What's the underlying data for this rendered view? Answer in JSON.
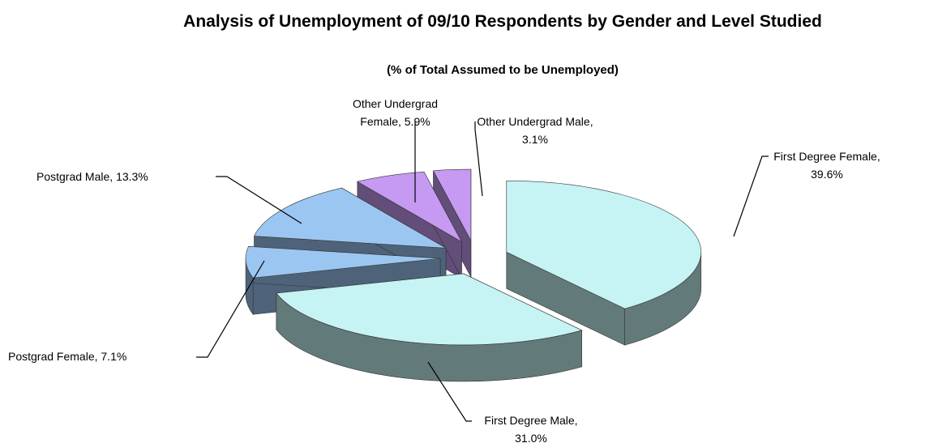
{
  "chart_data": {
    "type": "pie",
    "title": "Analysis of Unemployment of 09/10 Respondents by Gender and Level Studied",
    "subtitle": "(% of Total Assumed to be Unemployed)",
    "categories": [
      "First Degree Female,",
      "First Degree Male,",
      "Postgrad Female,",
      "Postgrad Male,",
      "Other Undergrad Female,",
      "Other Undergrad Male,"
    ],
    "values": [
      39.6,
      31.0,
      7.1,
      13.3,
      5.9,
      3.1
    ],
    "value_labels": [
      "39.6%",
      "31.0%",
      "7.1%",
      "13.3%",
      "5.9%",
      "3.1%"
    ],
    "colors": [
      "#c6f3f3",
      "#c6f3f3",
      "#9cc6f2",
      "#9cc6f2",
      "#c69af2",
      "#c69af2"
    ]
  }
}
